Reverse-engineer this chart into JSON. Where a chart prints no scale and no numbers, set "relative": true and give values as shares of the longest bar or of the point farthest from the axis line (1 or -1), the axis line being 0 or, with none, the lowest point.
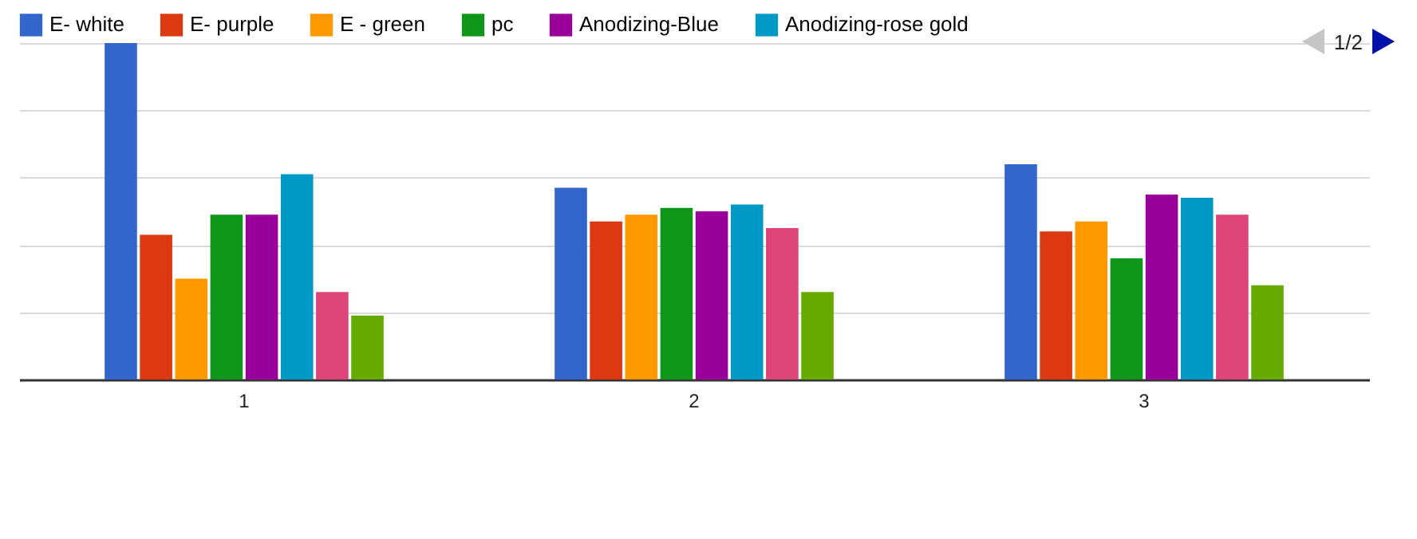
{
  "chart_data": {
    "type": "bar",
    "relative": true,
    "grid": true,
    "legend": "top",
    "categories": [
      "1",
      "2",
      "3"
    ],
    "series": [
      {
        "name": "E- white",
        "color": "#3366cc",
        "values": [
          1,
          0.57,
          0.64
        ]
      },
      {
        "name": "E- purple",
        "color": "#dc3912",
        "values": [
          0.43,
          0.47,
          0.44
        ]
      },
      {
        "name": "E - green",
        "color": "#ff9900",
        "values": [
          0.3,
          0.49,
          0.47
        ]
      },
      {
        "name": "pc",
        "color": "#109618",
        "values": [
          0.49,
          0.51,
          0.36
        ]
      },
      {
        "name": "Anodizing-Blue",
        "color": "#990099",
        "values": [
          0.49,
          0.5,
          0.55
        ]
      },
      {
        "name": "Anodizing-rose gold",
        "color": "#0099c6",
        "values": [
          0.61,
          0.52,
          0.54
        ]
      },
      {
        "color": "#dd4477",
        "values": [
          0.26,
          0.45,
          0.49
        ]
      },
      {
        "color": "#66aa00",
        "values": [
          0.19,
          0.26,
          0.28
        ]
      }
    ],
    "annotations": [
      "1/2"
    ]
  }
}
